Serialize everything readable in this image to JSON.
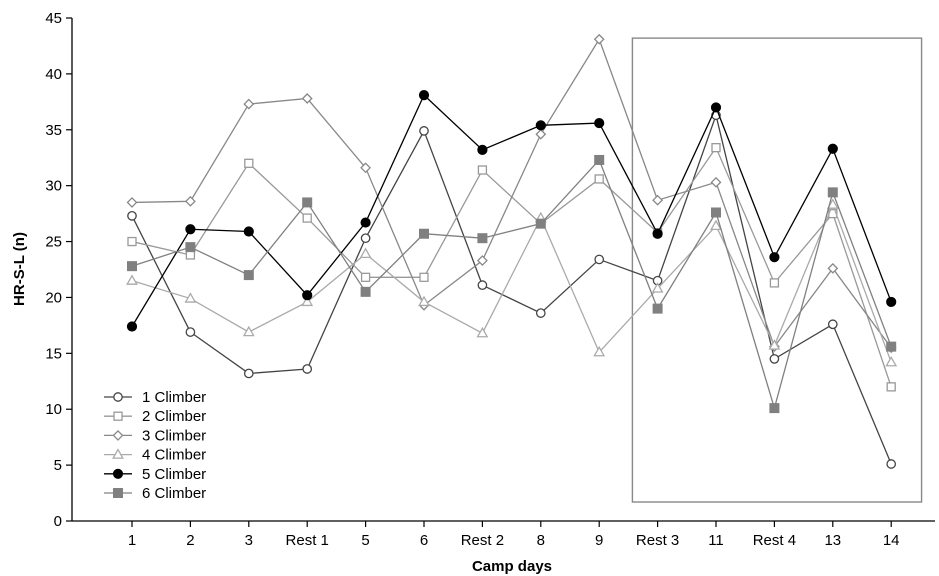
{
  "chart_data": {
    "type": "line",
    "title": "",
    "xlabel": "Camp days",
    "ylabel": "HR-S-L (n)",
    "ylim": [
      0,
      45
    ],
    "yticks": [
      0,
      5,
      10,
      15,
      20,
      25,
      30,
      35,
      40,
      45
    ],
    "categories": [
      "1",
      "2",
      "3",
      "Rest 1",
      "5",
      "6",
      "Rest 2",
      "8",
      "9",
      "Rest 3",
      "11",
      "Rest 4",
      "13",
      "14"
    ],
    "grid": false,
    "legend_position": "bottom-left",
    "highlight_box": {
      "from_category": "Rest 3",
      "to_category": "14",
      "y_range": [
        1.7,
        43.2
      ]
    },
    "series": [
      {
        "name": "1 Climber",
        "marker": "circle-open",
        "color": "#444444",
        "values": [
          27.3,
          16.9,
          13.2,
          13.6,
          25.3,
          34.9,
          21.1,
          18.6,
          23.4,
          21.5,
          36.3,
          14.5,
          17.6,
          5.1
        ]
      },
      {
        "name": "2 Climber",
        "marker": "square-open",
        "color": "#999999",
        "values": [
          25.0,
          23.8,
          32.0,
          27.1,
          21.8,
          21.8,
          31.4,
          26.6,
          30.6,
          25.8,
          33.4,
          21.3,
          27.5,
          12.0
        ]
      },
      {
        "name": "3 Climber",
        "marker": "diamond-open",
        "color": "#888888",
        "values": [
          28.5,
          28.6,
          37.3,
          37.8,
          31.6,
          19.3,
          23.3,
          34.6,
          43.1,
          28.7,
          30.3,
          15.6,
          22.6,
          15.5
        ]
      },
      {
        "name": "4 Climber",
        "marker": "triangle-open",
        "color": "#aaaaaa",
        "values": [
          21.5,
          19.9,
          16.9,
          19.6,
          23.9,
          19.6,
          16.8,
          27.1,
          15.1,
          20.8,
          26.4,
          15.7,
          28.3,
          14.2
        ]
      },
      {
        "name": "5 Climber",
        "marker": "circle-filled",
        "color": "#000000",
        "values": [
          17.4,
          26.1,
          25.9,
          20.2,
          26.7,
          38.1,
          33.2,
          35.4,
          35.6,
          25.7,
          37.0,
          23.6,
          33.3,
          19.6
        ]
      },
      {
        "name": "6 Climber",
        "marker": "square-filled",
        "color": "#808080",
        "values": [
          22.8,
          24.5,
          22.0,
          28.5,
          20.5,
          25.7,
          25.3,
          26.6,
          32.3,
          19.0,
          27.6,
          10.1,
          29.4,
          15.6
        ]
      }
    ]
  }
}
